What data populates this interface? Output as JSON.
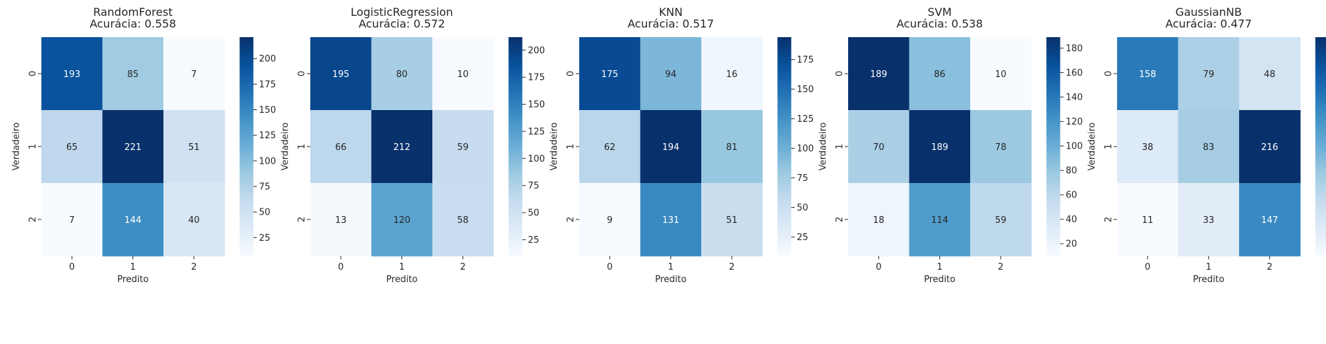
{
  "chart_data": [
    {
      "type": "heatmap",
      "title": [
        "RandomForest",
        "Acurácia: 0.558"
      ],
      "xlabel": "Predito",
      "ylabel": "Verdadeiro",
      "x_categories": [
        "0",
        "1",
        "2"
      ],
      "y_categories": [
        "0",
        "1",
        "2"
      ],
      "values": [
        [
          193,
          85,
          7
        ],
        [
          65,
          221,
          51
        ],
        [
          7,
          144,
          40
        ]
      ],
      "colorbar": {
        "min": 7,
        "max": 221,
        "ticks": [
          25,
          50,
          75,
          100,
          125,
          150,
          175,
          200
        ]
      },
      "colormap": "Blues"
    },
    {
      "type": "heatmap",
      "title": [
        "LogisticRegression",
        "Acurácia: 0.572"
      ],
      "xlabel": "Predito",
      "ylabel": "Verdadeiro",
      "x_categories": [
        "0",
        "1",
        "2"
      ],
      "y_categories": [
        "0",
        "1",
        "2"
      ],
      "values": [
        [
          195,
          80,
          10
        ],
        [
          66,
          212,
          59
        ],
        [
          13,
          120,
          58
        ]
      ],
      "colorbar": {
        "min": 10,
        "max": 212,
        "ticks": [
          25,
          50,
          75,
          100,
          125,
          150,
          175,
          200
        ]
      },
      "colormap": "Blues"
    },
    {
      "type": "heatmap",
      "title": [
        "KNN",
        "Acurácia: 0.517"
      ],
      "xlabel": "Predito",
      "ylabel": "Verdadeiro",
      "x_categories": [
        "0",
        "1",
        "2"
      ],
      "y_categories": [
        "0",
        "1",
        "2"
      ],
      "values": [
        [
          175,
          94,
          16
        ],
        [
          62,
          194,
          81
        ],
        [
          9,
          131,
          51
        ]
      ],
      "colorbar": {
        "min": 9,
        "max": 194,
        "ticks": [
          25,
          50,
          75,
          100,
          125,
          150,
          175
        ]
      },
      "colormap": "Blues"
    },
    {
      "type": "heatmap",
      "title": [
        "SVM",
        "Acurácia: 0.538"
      ],
      "xlabel": "Predito",
      "ylabel": "Verdadeiro",
      "x_categories": [
        "0",
        "1",
        "2"
      ],
      "y_categories": [
        "0",
        "1",
        "2"
      ],
      "values": [
        [
          189,
          86,
          10
        ],
        [
          70,
          189,
          78
        ],
        [
          18,
          114,
          59
        ]
      ],
      "colorbar": {
        "min": 10,
        "max": 189,
        "ticks": [
          20,
          40,
          60,
          80,
          100,
          120,
          140,
          160,
          180
        ]
      },
      "colormap": "Blues"
    },
    {
      "type": "heatmap",
      "title": [
        "GaussianNB",
        "Acurácia: 0.477"
      ],
      "xlabel": "Predito",
      "ylabel": "Verdadeiro",
      "x_categories": [
        "0",
        "1",
        "2"
      ],
      "y_categories": [
        "0",
        "1",
        "2"
      ],
      "values": [
        [
          158,
          79,
          48
        ],
        [
          38,
          83,
          216
        ],
        [
          11,
          33,
          147
        ]
      ],
      "colorbar": {
        "min": 11,
        "max": 216,
        "ticks": [
          25,
          50,
          75,
          100,
          125,
          150,
          175,
          200
        ]
      },
      "colormap": "Blues"
    }
  ]
}
